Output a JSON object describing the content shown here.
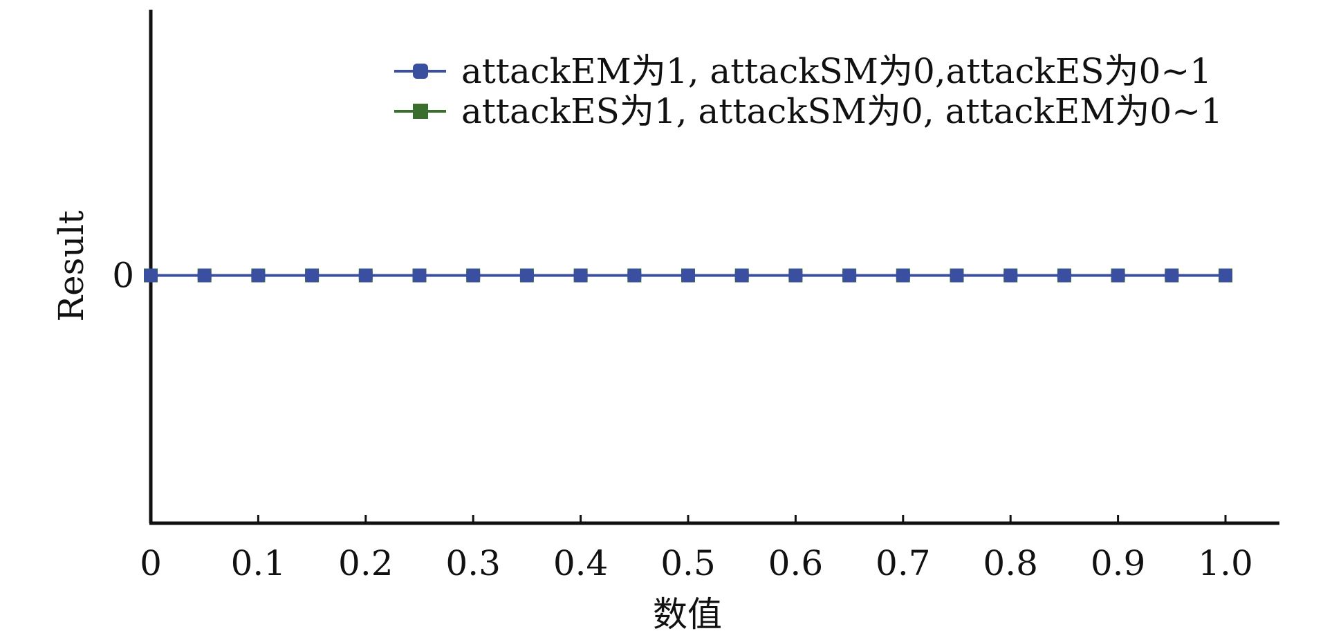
{
  "chart_data": {
    "type": "line",
    "xlabel": "数值",
    "ylabel": "Result",
    "x": [
      0,
      0.05,
      0.1,
      0.15,
      0.2,
      0.25,
      0.3,
      0.35,
      0.4,
      0.45,
      0.5,
      0.55,
      0.6,
      0.65,
      0.7,
      0.75,
      0.8,
      0.85,
      0.9,
      0.95,
      1.0
    ],
    "xlim": [
      0,
      1.05
    ],
    "ylim": [
      -1,
      1
    ],
    "x_ticks": [
      {
        "value": 0,
        "label": "0"
      },
      {
        "value": 0.1,
        "label": "0.1"
      },
      {
        "value": 0.2,
        "label": "0.2"
      },
      {
        "value": 0.3,
        "label": "0.3"
      },
      {
        "value": 0.4,
        "label": "0.4"
      },
      {
        "value": 0.5,
        "label": "0.5"
      },
      {
        "value": 0.6,
        "label": "0.6"
      },
      {
        "value": 0.7,
        "label": "0.7"
      },
      {
        "value": 0.8,
        "label": "0.8"
      },
      {
        "value": 0.9,
        "label": "0.9"
      },
      {
        "value": 1.0,
        "label": "1.0"
      }
    ],
    "y_ticks": [
      {
        "value": 0,
        "label": "0"
      }
    ],
    "grid": false,
    "legend_position": "top-right",
    "series": [
      {
        "name": "attackES为1, attackSM为0, attackEM为0~1",
        "color": "#3a6e2e",
        "marker": "square",
        "values": [
          0,
          0,
          0,
          0,
          0,
          0,
          0,
          0,
          0,
          0,
          0,
          0,
          0,
          0,
          0,
          0,
          0,
          0,
          0,
          0,
          0
        ]
      },
      {
        "name": "attackEM为1, attackSM为0,attackES为0~1",
        "color": "#3b4fa0",
        "marker": "circle",
        "values": [
          0,
          0,
          0,
          0,
          0,
          0,
          0,
          0,
          0,
          0,
          0,
          0,
          0,
          0,
          0,
          0,
          0,
          0,
          0,
          0,
          0
        ]
      }
    ],
    "legend_order": [
      1,
      0
    ]
  }
}
